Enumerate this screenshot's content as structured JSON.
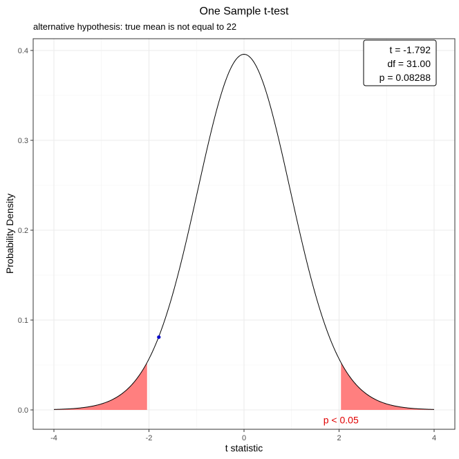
{
  "chart_data": {
    "type": "area",
    "title": "One Sample t-test",
    "subtitle": "alternative hypothesis: true mean is not equal to 22",
    "xlabel": "t statistic",
    "ylabel": "Probability Density",
    "xlim": [
      -4,
      4
    ],
    "ylim": [
      0,
      0.4
    ],
    "x_ticks": [
      -4,
      -2,
      0,
      2,
      4
    ],
    "y_ticks": [
      0.0,
      0.1,
      0.2,
      0.3,
      0.4
    ],
    "x_tick_labels": [
      "-4",
      "-2",
      "0",
      "2",
      "4"
    ],
    "y_tick_labels": [
      "0.0",
      "0.1",
      "0.2",
      "0.3",
      "0.4"
    ],
    "grid": true,
    "distribution": {
      "name": "t",
      "df": 31.0
    },
    "rejection_region": {
      "lower": -2.04,
      "upper": 2.04,
      "color": "#ff7f7f"
    },
    "observed_point": {
      "x": -1.792,
      "y": 0.081,
      "color": "#0000cc"
    },
    "stats_box": {
      "placement": "top-right",
      "lines": [
        "t = -1.792",
        "df = 31.00",
        "p = 0.08288"
      ]
    },
    "annotation": {
      "text": "p < 0.05",
      "x": 2.04,
      "y": -0.011,
      "color": "#e00000"
    },
    "curve_color": "#000000"
  }
}
